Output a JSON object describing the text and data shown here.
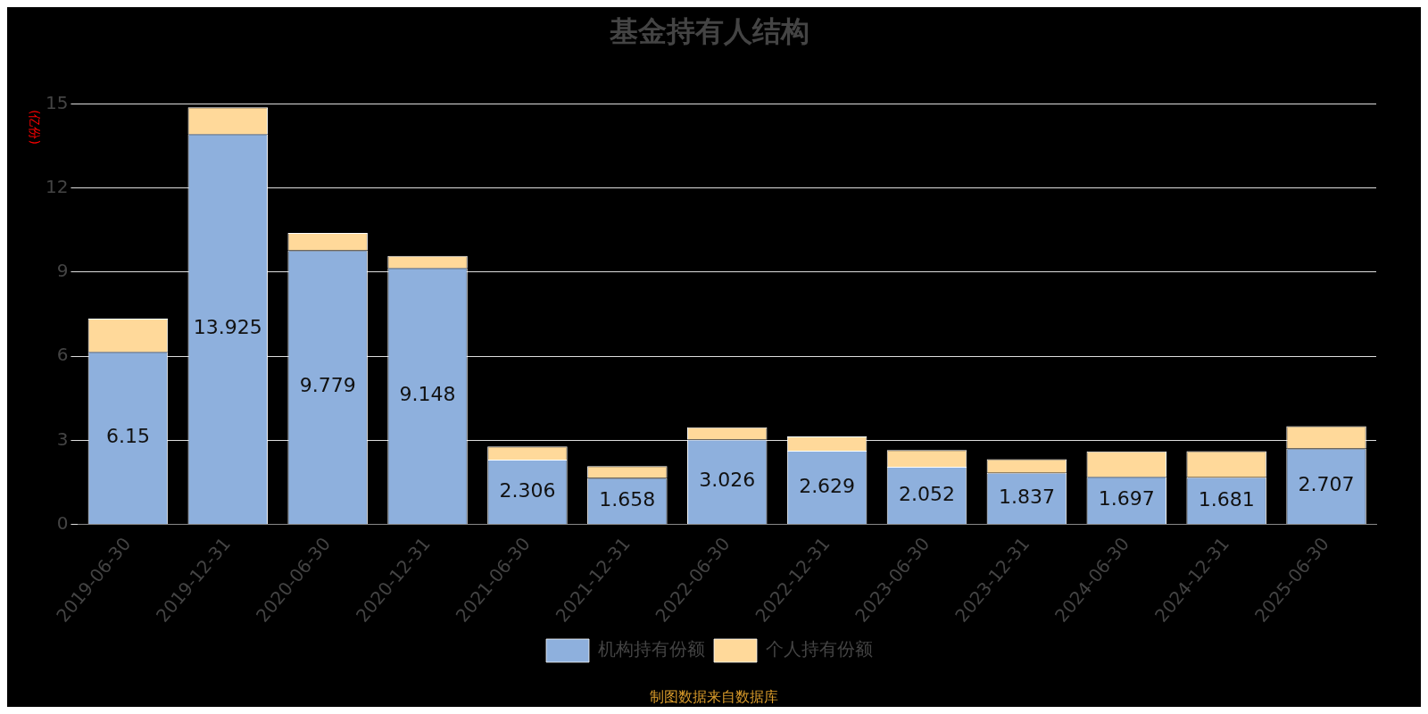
{
  "chart_data": {
    "type": "bar",
    "title": "基金持有人结构",
    "ylabel": "(亿份)",
    "stacked": true,
    "categories": [
      "2019-06-30",
      "2019-12-31",
      "2020-06-30",
      "2020-12-31",
      "2021-06-30",
      "2021-12-31",
      "2022-06-30",
      "2022-12-31",
      "2023-06-30",
      "2023-12-31",
      "2024-06-30",
      "2024-12-31",
      "2025-06-30"
    ],
    "series": [
      {
        "name": "机构持有份额",
        "color": "#8eb0dd",
        "values": [
          6.15,
          13.925,
          9.779,
          9.148,
          2.306,
          1.658,
          3.026,
          2.629,
          2.052,
          1.837,
          1.697,
          1.681,
          2.707
        ],
        "value_labels": [
          "6.15",
          "13.925",
          "9.779",
          "9.148",
          "2.306",
          "1.658",
          "3.026",
          "2.629",
          "2.052",
          "1.837",
          "1.697",
          "1.681",
          "2.707"
        ]
      },
      {
        "name": "个人持有份额",
        "color": "#ffd99a",
        "values": [
          1.19,
          0.95,
          0.62,
          0.43,
          0.47,
          0.42,
          0.44,
          0.51,
          0.6,
          0.49,
          0.91,
          0.93,
          0.8
        ]
      }
    ],
    "ylim": [
      0,
      15
    ],
    "yticks": [
      0,
      3,
      6,
      9,
      12,
      15
    ],
    "grid": "y",
    "legend": "bottom",
    "annotations": [
      "制图数据来自数据库"
    ]
  }
}
